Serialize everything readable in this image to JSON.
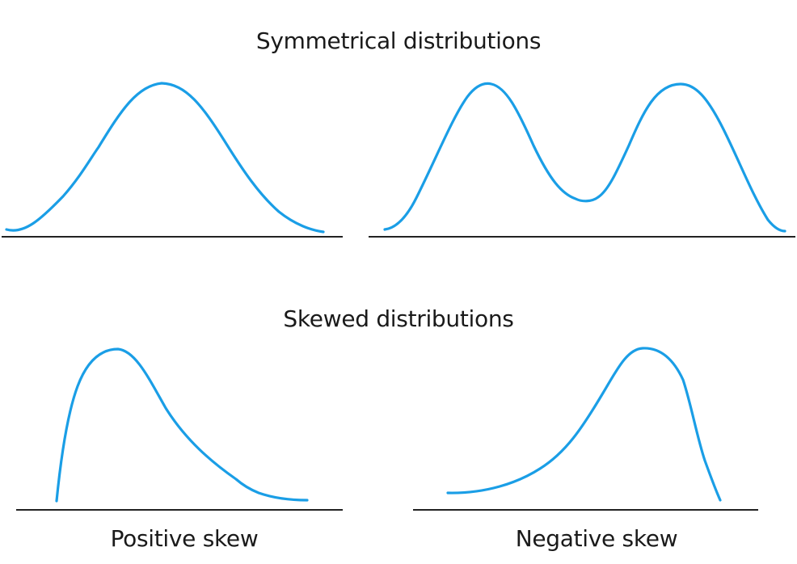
{
  "colors": {
    "curve": "#1a9ee6",
    "axis": "#222222",
    "text": "#1a1a1a"
  },
  "sections": {
    "symmetrical": {
      "title": "Symmetrical distributions"
    },
    "skewed": {
      "title": "Skewed distributions",
      "left_caption": "Positive skew",
      "right_caption": "Negative skew"
    }
  }
}
